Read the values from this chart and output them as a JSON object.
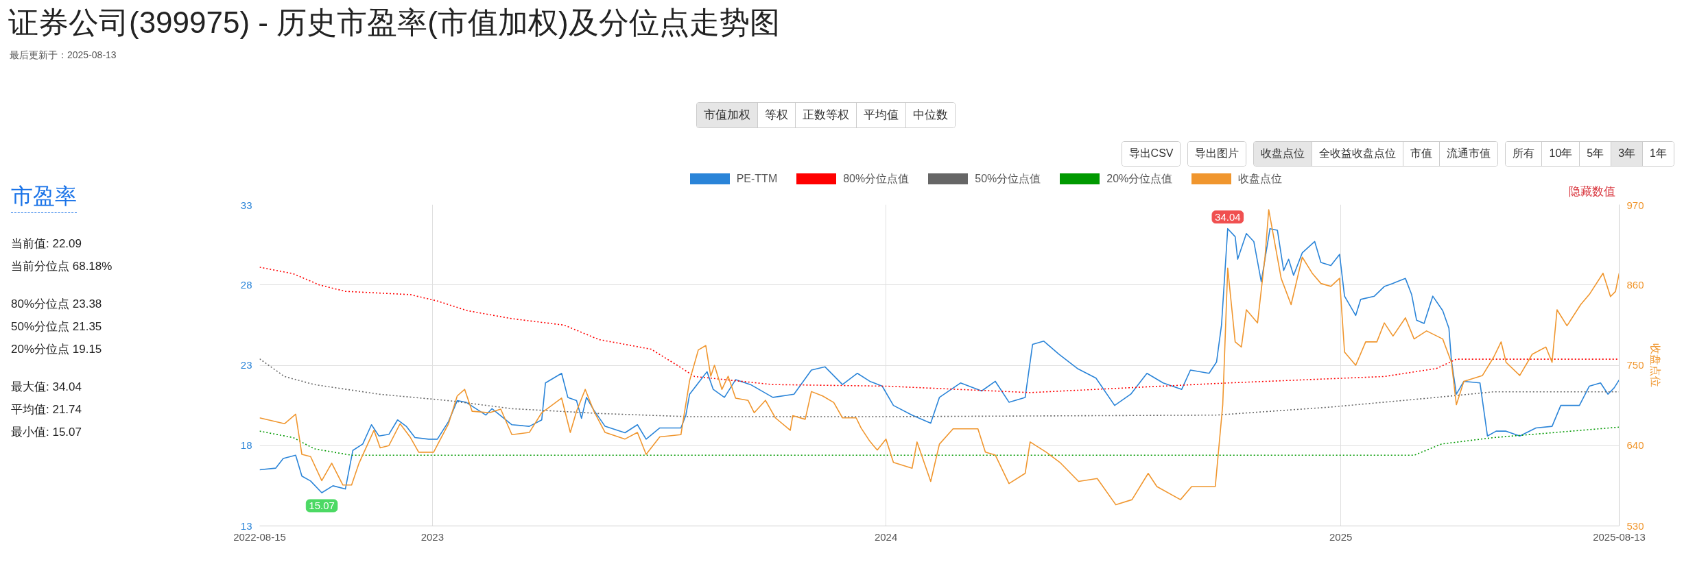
{
  "chart_data": {
    "type": "line",
    "title": "证券公司(399975) - 历史市盈率(市值加权)及分位点走势图",
    "subtitle": "最后更新于：2025-08-13",
    "y2label": "收盘点位",
    "xlim": [
      "2022-08-15",
      "2025-08-13"
    ],
    "ylim": [
      13,
      33
    ],
    "y2lim": [
      530,
      970
    ],
    "xticks": [
      {
        "value": "2022-08-15",
        "label": "2022-08-15"
      },
      {
        "value": "2023-01-01",
        "label": "2023"
      },
      {
        "value": "2024-01-01",
        "label": "2024"
      },
      {
        "value": "2025-01-01",
        "label": "2025"
      },
      {
        "value": "2025-08-13",
        "label": "2025-08-13"
      }
    ],
    "yticks": [
      13,
      18,
      23,
      28,
      33
    ],
    "y2ticks": [
      530,
      640,
      750,
      860,
      970
    ],
    "grid": true,
    "legend": "top",
    "series": [
      {
        "name": "PE-TTM",
        "color": "#2a84d8",
        "line_style": "solid",
        "x": [
          "2022-08-15",
          "2022-08-28",
          "2022-09-03",
          "2022-09-13",
          "2022-09-18",
          "2022-09-25",
          "2022-10-04",
          "2022-10-13",
          "2022-10-23",
          "2022-10-29",
          "2022-11-06",
          "2022-11-13",
          "2022-11-19",
          "2022-11-27",
          "2022-12-04",
          "2022-12-11",
          "2022-12-18",
          "2022-12-29",
          "2023-01-05",
          "2023-01-14",
          "2023-01-21",
          "2023-01-28",
          "2023-02-13",
          "2023-02-18",
          "2023-03-06",
          "2023-03-20",
          "2023-03-30",
          "2023-04-02",
          "2023-04-15",
          "2023-04-20",
          "2023-04-27",
          "2023-05-01",
          "2023-05-05",
          "2023-05-11",
          "2023-05-20",
          "2023-06-05",
          "2023-06-15",
          "2023-06-22",
          "2023-07-03",
          "2023-07-20",
          "2023-07-24",
          "2023-07-27",
          "2023-08-10",
          "2023-08-15",
          "2023-08-24",
          "2023-09-02",
          "2023-09-14",
          "2023-10-02",
          "2023-10-19",
          "2023-11-02",
          "2023-11-13",
          "2023-11-27",
          "2023-12-09",
          "2023-12-19",
          "2023-12-29",
          "2024-01-07",
          "2024-01-22",
          "2024-02-06",
          "2024-02-13",
          "2024-03-01",
          "2024-03-18",
          "2024-03-29",
          "2024-04-09",
          "2024-04-22",
          "2024-04-28",
          "2024-05-07",
          "2024-05-19",
          "2024-06-03",
          "2024-06-18",
          "2024-07-03",
          "2024-07-16",
          "2024-07-29",
          "2024-08-11",
          "2024-08-26",
          "2024-09-02",
          "2024-09-17",
          "2024-09-23",
          "2024-09-27",
          "2024-10-02",
          "2024-10-08",
          "2024-10-10",
          "2024-10-17",
          "2024-10-23",
          "2024-10-29",
          "2024-11-05",
          "2024-11-11",
          "2024-11-16",
          "2024-11-20",
          "2024-11-24",
          "2024-12-01",
          "2024-12-11",
          "2024-12-16",
          "2024-12-24",
          "2024-12-31",
          "2025-01-04",
          "2025-01-13",
          "2025-01-17",
          "2025-01-28",
          "2025-02-05",
          "2025-02-12",
          "2025-02-22",
          "2025-02-27",
          "2025-03-03",
          "2025-03-09",
          "2025-03-16",
          "2025-03-24",
          "2025-03-29",
          "2025-03-31",
          "2025-04-04",
          "2025-04-10",
          "2025-04-23",
          "2025-04-29",
          "2025-05-06",
          "2025-05-14",
          "2025-05-25",
          "2025-06-07",
          "2025-06-20",
          "2025-06-27",
          "2025-07-12",
          "2025-07-20",
          "2025-07-29",
          "2025-08-04",
          "2025-08-09",
          "2025-08-13"
        ],
        "values": [
          16.5,
          16.6,
          17.2,
          17.4,
          16.1,
          15.8,
          15.07,
          15.5,
          15.3,
          17.7,
          18.1,
          19.3,
          18.6,
          18.7,
          19.6,
          19.2,
          18.5,
          18.4,
          18.4,
          19.5,
          20.8,
          20.7,
          19.9,
          20.3,
          19.3,
          19.2,
          19.6,
          21.9,
          22.5,
          21.0,
          20.8,
          19.7,
          21.0,
          20.2,
          19.2,
          18.8,
          19.3,
          18.4,
          19.1,
          19.1,
          19.9,
          21.2,
          22.6,
          21.5,
          21.0,
          22.1,
          21.8,
          21.0,
          21.2,
          22.7,
          22.9,
          21.8,
          22.5,
          22.0,
          21.7,
          20.5,
          19.9,
          19.4,
          21.0,
          21.9,
          21.4,
          22.0,
          20.7,
          21.0,
          24.3,
          24.5,
          23.7,
          22.8,
          22.2,
          20.5,
          21.2,
          22.5,
          21.9,
          21.5,
          22.7,
          22.5,
          23.2,
          25.5,
          31.5,
          31.0,
          29.6,
          31.2,
          30.7,
          28.2,
          31.5,
          31.4,
          28.9,
          29.6,
          28.6,
          30.0,
          30.7,
          29.4,
          29.2,
          29.9,
          27.3,
          26.1,
          27.1,
          27.3,
          27.9,
          28.1,
          28.4,
          27.4,
          25.8,
          25.6,
          27.3,
          26.4,
          25.3,
          23.3,
          21.2,
          22.0,
          21.9,
          18.6,
          18.9,
          18.9,
          18.6,
          19.1,
          19.2,
          20.5,
          20.5,
          21.7,
          21.9,
          21.2,
          21.6,
          22.09
        ]
      },
      {
        "name": "80%分位点值",
        "color": "#ff0000",
        "line_style": "dotted",
        "x": [
          "2022-08-15",
          "2022-09-11",
          "2022-10-02",
          "2022-10-23",
          "2022-12-14",
          "2023-01-05",
          "2023-01-29",
          "2023-03-06",
          "2023-04-17",
          "2023-05-15",
          "2023-06-26",
          "2023-07-17",
          "2023-07-31",
          "2023-10-02",
          "2024-01-01",
          "2024-04-26",
          "2024-10-02",
          "2025-02-05",
          "2025-03-19",
          "2025-04-04",
          "2025-08-13"
        ],
        "values": [
          29.1,
          28.7,
          28.0,
          27.6,
          27.4,
          27.0,
          26.4,
          25.9,
          25.5,
          24.6,
          24.0,
          23.0,
          22.3,
          21.8,
          21.7,
          21.3,
          21.9,
          22.3,
          22.8,
          23.38,
          23.38
        ]
      },
      {
        "name": "50%分位点值",
        "color": "#666666",
        "line_style": "dotted",
        "x": [
          "2022-08-15",
          "2022-09-04",
          "2022-09-28",
          "2022-11-19",
          "2023-01-14",
          "2023-03-06",
          "2023-05-15",
          "2023-07-27",
          "2024-01-01",
          "2024-09-23",
          "2024-12-24",
          "2025-03-19",
          "2025-05-04",
          "2025-08-13"
        ],
        "values": [
          23.4,
          22.3,
          21.8,
          21.2,
          20.8,
          20.3,
          20.0,
          19.8,
          19.8,
          19.9,
          20.4,
          21.0,
          21.35,
          21.35
        ]
      },
      {
        "name": "20%分位点值",
        "color": "#009900",
        "line_style": "dotted",
        "x": [
          "2022-08-15",
          "2022-09-11",
          "2022-09-28",
          "2022-10-28",
          "2024-01-01",
          "2025-03-01",
          "2025-03-23",
          "2025-05-04",
          "2025-08-13"
        ],
        "values": [
          18.9,
          18.5,
          17.8,
          17.4,
          17.4,
          17.4,
          18.1,
          18.5,
          19.15
        ]
      },
      {
        "name": "收盘点位",
        "color": "#f0962e",
        "line_style": "solid",
        "axis": "y2",
        "x": [
          "2022-08-15",
          "2022-09-04",
          "2022-09-13",
          "2022-09-18",
          "2022-09-25",
          "2022-10-04",
          "2022-10-12",
          "2022-10-21",
          "2022-10-28",
          "2022-11-03",
          "2022-11-15",
          "2022-11-20",
          "2022-11-27",
          "2022-12-06",
          "2022-12-14",
          "2022-12-21",
          "2023-01-02",
          "2023-01-14",
          "2023-01-21",
          "2023-01-27",
          "2023-02-02",
          "2023-02-16",
          "2023-02-25",
          "2023-03-06",
          "2023-03-20",
          "2023-03-30",
          "2023-04-15",
          "2023-04-22",
          "2023-04-27",
          "2023-05-04",
          "2023-05-11",
          "2023-05-20",
          "2023-06-05",
          "2023-06-15",
          "2023-06-22",
          "2023-07-03",
          "2023-07-20",
          "2023-07-27",
          "2023-08-03",
          "2023-08-09",
          "2023-08-13",
          "2023-08-16",
          "2023-08-22",
          "2023-08-27",
          "2023-09-02",
          "2023-09-12",
          "2023-09-17",
          "2023-09-26",
          "2023-10-04",
          "2023-10-16",
          "2023-10-18",
          "2023-10-28",
          "2023-11-02",
          "2023-11-11",
          "2023-11-20",
          "2023-11-27",
          "2023-12-08",
          "2023-12-12",
          "2023-12-19",
          "2023-12-25",
          "2024-01-01",
          "2024-01-07",
          "2024-01-22",
          "2024-01-26",
          "2024-02-06",
          "2024-02-13",
          "2024-02-24",
          "2024-03-15",
          "2024-03-21",
          "2024-03-29",
          "2024-04-09",
          "2024-04-22",
          "2024-04-26",
          "2024-05-09",
          "2024-05-20",
          "2024-06-04",
          "2024-06-19",
          "2024-07-04",
          "2024-07-17",
          "2024-07-30",
          "2024-08-06",
          "2024-08-25",
          "2024-09-03",
          "2024-09-22",
          "2024-09-28",
          "2024-10-02",
          "2024-10-08",
          "2024-10-13",
          "2024-10-17",
          "2024-10-26",
          "2024-11-01",
          "2024-11-04",
          "2024-11-14",
          "2024-11-22",
          "2024-12-01",
          "2024-12-09",
          "2024-12-16",
          "2024-12-24",
          "2024-12-31",
          "2025-01-04",
          "2025-01-13",
          "2025-01-21",
          "2025-01-30",
          "2025-02-05",
          "2025-02-12",
          "2025-02-22",
          "2025-03-01",
          "2025-03-11",
          "2025-03-24",
          "2025-03-31",
          "2025-04-04",
          "2025-04-10",
          "2025-04-25",
          "2025-05-04",
          "2025-05-10",
          "2025-05-14",
          "2025-05-25",
          "2025-06-04",
          "2025-06-15",
          "2025-06-20",
          "2025-06-24",
          "2025-07-02",
          "2025-07-13",
          "2025-07-20",
          "2025-07-31",
          "2025-08-06",
          "2025-08-10",
          "2025-08-13"
        ],
        "values": [
          678,
          670,
          683,
          628,
          625,
          592,
          616,
          586,
          586,
          616,
          661,
          637,
          640,
          670,
          652,
          631,
          631,
          670,
          708,
          717,
          687,
          685,
          690,
          655,
          658,
          685,
          705,
          658,
          687,
          717,
          687,
          658,
          649,
          658,
          628,
          652,
          655,
          729,
          771,
          777,
          735,
          750,
          717,
          735,
          705,
          702,
          685,
          702,
          678,
          661,
          681,
          676,
          714,
          708,
          699,
          678,
          678,
          664,
          646,
          634,
          649,
          617,
          609,
          645,
          591,
          642,
          663,
          663,
          631,
          627,
          588,
          602,
          645,
          631,
          617,
          591,
          595,
          559,
          566,
          602,
          584,
          566,
          584,
          584,
          696,
          883,
          782,
          775,
          826,
          808,
          898,
          963,
          869,
          833,
          898,
          876,
          862,
          858,
          869,
          768,
          750,
          782,
          782,
          808,
          790,
          815,
          786,
          797,
          786,
          754,
          696,
          728,
          736,
          761,
          782,
          754,
          736,
          765,
          775,
          754,
          826,
          804,
          833,
          847,
          876,
          844,
          851,
          876
        ]
      }
    ],
    "annotations": [
      "市盈率",
      "当前值: 22.09",
      "当前分位点 68.18%",
      "80%分位点 23.38",
      "50%分位点 21.35",
      "20%分位点 19.15",
      "最大值: 34.04",
      "平均值: 21.74",
      "最小值: 15.07",
      "市值加权",
      "等权",
      "正数等权",
      "平均值",
      "中位数",
      "导出CSV",
      "导出图片",
      "收盘点位",
      "全收益收盘点位",
      "市值",
      "流通市值",
      "所有",
      "10年",
      "5年",
      "3年",
      "1年",
      "隐藏数值",
      {
        "text": "34.04",
        "x": "2024-10-02",
        "y": 31.5
      },
      {
        "text": "15.07",
        "x": "2022-10-04",
        "y": 15.07
      }
    ]
  }
}
